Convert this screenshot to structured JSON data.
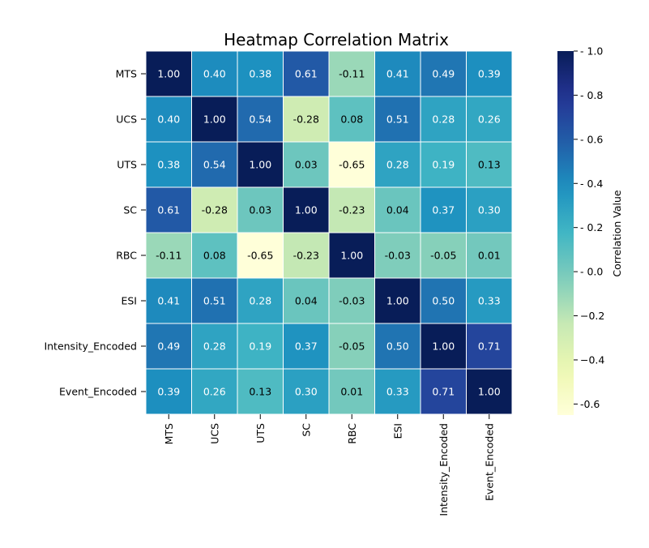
{
  "chart_data": {
    "type": "heatmap",
    "title": "Heatmap Correlation Matrix",
    "x_labels": [
      "MTS",
      "UCS",
      "UTS",
      "SC",
      "RBC",
      "ESI",
      "Intensity_Encoded",
      "Event_Encoded"
    ],
    "y_labels": [
      "MTS",
      "UCS",
      "UTS",
      "SC",
      "RBC",
      "ESI",
      "Intensity_Encoded",
      "Event_Encoded"
    ],
    "matrix": [
      [
        1.0,
        0.4,
        0.38,
        0.61,
        -0.11,
        0.41,
        0.49,
        0.39
      ],
      [
        0.4,
        1.0,
        0.54,
        -0.28,
        0.08,
        0.51,
        0.28,
        0.26
      ],
      [
        0.38,
        0.54,
        1.0,
        0.03,
        -0.65,
        0.28,
        0.19,
        0.13
      ],
      [
        0.61,
        -0.28,
        0.03,
        1.0,
        -0.23,
        0.04,
        0.37,
        0.3
      ],
      [
        -0.11,
        0.08,
        -0.65,
        -0.23,
        1.0,
        -0.03,
        -0.05,
        0.01
      ],
      [
        0.41,
        0.51,
        0.28,
        0.04,
        -0.03,
        1.0,
        0.5,
        0.33
      ],
      [
        0.49,
        0.28,
        0.19,
        0.37,
        -0.05,
        0.5,
        1.0,
        0.71
      ],
      [
        0.39,
        0.26,
        0.13,
        0.3,
        0.01,
        0.33,
        0.71,
        1.0
      ]
    ],
    "value_format": "0.00",
    "colormap": "YlGnBu",
    "vmin": -0.65,
    "vmax": 1.0,
    "colorbar": {
      "label": "Correlation Value",
      "ticks": [
        -0.6,
        -0.4,
        -0.2,
        0.0,
        0.2,
        0.4,
        0.6,
        0.8,
        1.0
      ],
      "tick_labels": [
        "-0.6",
        "−0.4",
        "−0.2",
        "- 0.0",
        "- 0.2",
        "- 0.4",
        "- 0.6",
        "- 0.8",
        "- 1.0"
      ]
    },
    "grid_lines": true,
    "grid_color": "#ffffff",
    "text_color_light": "#ffffff",
    "text_color_dark": "#000000"
  }
}
